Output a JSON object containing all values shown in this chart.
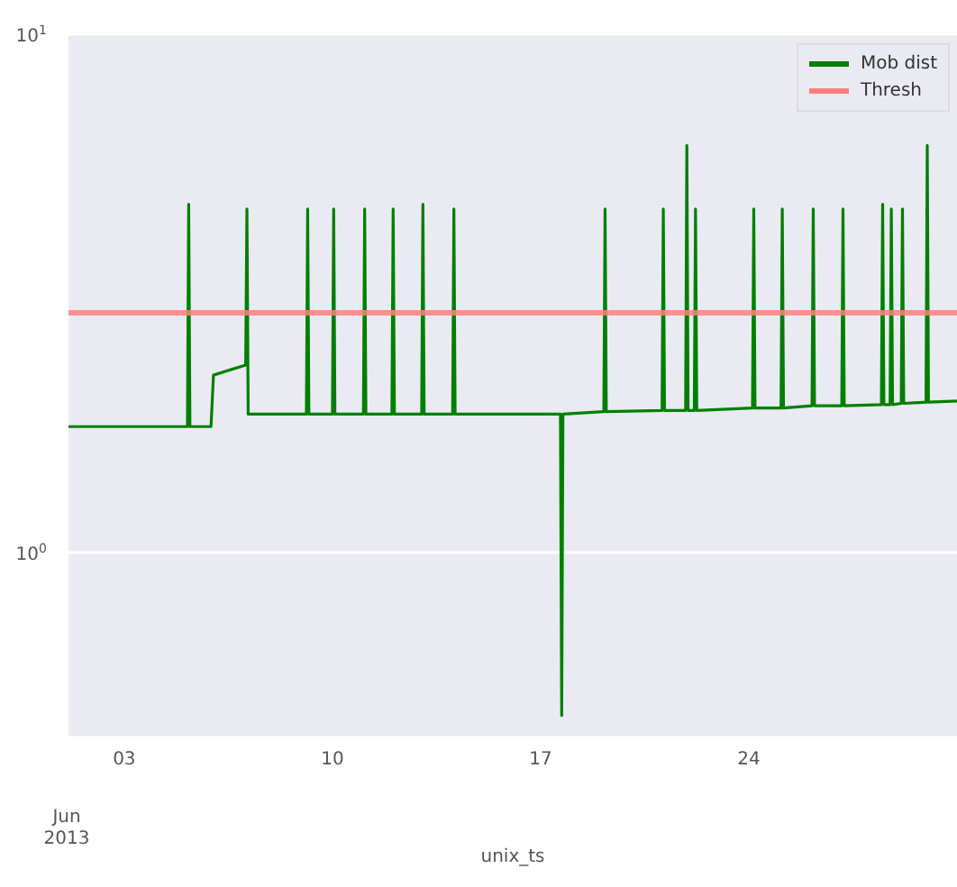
{
  "chart_data": {
    "type": "line",
    "xlabel": "unix_ts",
    "log": "y",
    "grid": "y",
    "legend": "top right",
    "line_style": "solid",
    "marker": "none",
    "xlim": [
      "2013-06-01T03:00",
      "2013-07-01T00:00"
    ],
    "xticks": [
      {
        "value": "2013-06-03",
        "label": "03"
      },
      {
        "value": "2013-06-10",
        "label": "10"
      },
      {
        "value": "2013-06-17",
        "label": "17"
      },
      {
        "value": "2013-06-24",
        "label": "24"
      }
    ],
    "ylim": [
      0.44,
      10
    ],
    "yticks": [
      {
        "value": 1,
        "label": "10$^{0}$"
      },
      {
        "value": 10,
        "label": "10$^{1}$"
      }
    ],
    "annotations": [
      "Jun 2013"
    ],
    "series": [
      {
        "name": "Mob dist",
        "color": "#008000",
        "x": [
          "2013-06-01T03:00",
          "2013-06-05T03:00",
          "2013-06-05T04:00",
          "2013-06-05T05:00",
          "2013-06-05T22:00",
          "2013-06-06T00:00",
          "2013-06-07T02:00",
          "2013-06-07T03:00",
          "2013-06-07T04:00",
          "2013-06-09T03:00",
          "2013-06-09T04:00",
          "2013-06-09T05:00",
          "2013-06-10T00:00",
          "2013-06-10T01:00",
          "2013-06-10T02:00",
          "2013-06-11T01:00",
          "2013-06-11T02:00",
          "2013-06-11T03:00",
          "2013-06-12T00:00",
          "2013-06-12T01:00",
          "2013-06-12T02:00",
          "2013-06-13T00:00",
          "2013-06-13T01:00",
          "2013-06-13T02:00",
          "2013-06-14T01:00",
          "2013-06-14T02:00",
          "2013-06-14T03:00",
          "2013-06-17T16:00",
          "2013-06-17T17:00",
          "2013-06-17T18:00",
          "2013-06-19T03:00",
          "2013-06-19T04:00",
          "2013-06-19T05:00",
          "2013-06-21T02:00",
          "2013-06-21T03:00",
          "2013-06-21T04:00",
          "2013-06-21T21:00",
          "2013-06-21T22:00",
          "2013-06-21T23:00",
          "2013-06-22T04:00",
          "2013-06-22T05:00",
          "2013-06-22T06:00",
          "2013-06-24T03:00",
          "2013-06-24T04:00",
          "2013-06-24T05:00",
          "2013-06-25T02:00",
          "2013-06-25T03:00",
          "2013-06-25T04:00",
          "2013-06-26T03:00",
          "2013-06-26T04:00",
          "2013-06-26T05:00",
          "2013-06-27T03:00",
          "2013-06-27T04:00",
          "2013-06-27T05:00",
          "2013-06-28T11:00",
          "2013-06-28T12:00",
          "2013-06-28T13:00",
          "2013-06-28T18:00",
          "2013-06-28T19:00",
          "2013-06-28T20:00",
          "2013-06-29T03:00",
          "2013-06-29T04:00",
          "2013-06-29T05:00",
          "2013-06-29T23:00",
          "2013-06-30T00:00",
          "2013-06-30T01:00",
          "2013-07-01T00:00"
        ],
        "values": [
          1.75,
          1.75,
          4.7,
          1.75,
          1.75,
          2.2,
          2.3,
          4.6,
          1.85,
          1.85,
          4.6,
          1.85,
          1.85,
          4.6,
          1.85,
          1.85,
          4.6,
          1.85,
          1.85,
          4.6,
          1.85,
          1.85,
          4.7,
          1.85,
          1.85,
          4.6,
          1.85,
          1.85,
          0.485,
          1.85,
          1.87,
          4.6,
          1.87,
          1.88,
          4.6,
          1.88,
          1.88,
          6.1,
          1.88,
          1.88,
          4.6,
          1.88,
          1.9,
          4.6,
          1.9,
          1.9,
          4.6,
          1.9,
          1.92,
          4.6,
          1.92,
          1.92,
          4.6,
          1.92,
          1.93,
          4.7,
          1.93,
          1.93,
          4.6,
          1.93,
          1.94,
          4.6,
          1.94,
          1.95,
          6.1,
          1.95,
          1.96
        ]
      },
      {
        "name": "Thresh",
        "color": "#ff7f7f",
        "x": [
          "2013-06-01T03:00",
          "2013-07-01T00:00"
        ],
        "values": [
          2.9,
          2.9
        ]
      }
    ]
  }
}
